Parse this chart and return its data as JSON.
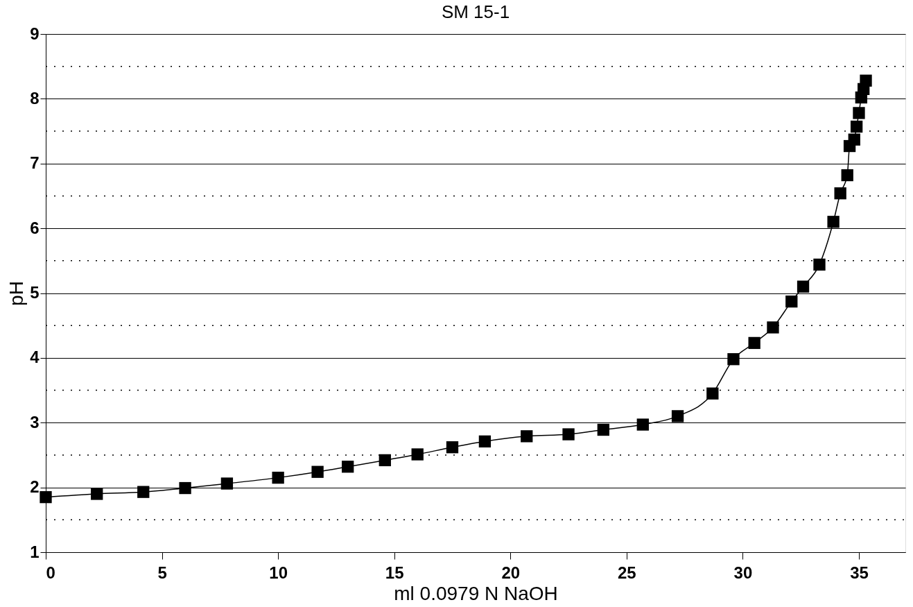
{
  "chart_data": {
    "type": "line",
    "title": "SM 15-1",
    "xlabel": "ml 0.0979 N NaOH",
    "ylabel": "pH",
    "x": [
      0,
      2.2,
      4.2,
      6.0,
      7.8,
      10.0,
      11.7,
      13.0,
      14.6,
      16.0,
      17.5,
      18.9,
      20.7,
      22.5,
      24.0,
      25.7,
      27.2,
      28.7,
      29.6,
      30.5,
      31.3,
      32.1,
      32.6,
      33.3,
      33.9,
      34.2,
      34.5,
      34.6,
      34.8,
      34.9,
      35.0,
      35.1,
      35.2,
      35.3
    ],
    "series": [
      {
        "color": "#000000",
        "values": [
          1.85,
          1.9,
          1.93,
          1.99,
          2.06,
          2.15,
          2.24,
          2.32,
          2.42,
          2.51,
          2.62,
          2.71,
          2.79,
          2.82,
          2.89,
          2.97,
          3.1,
          3.45,
          3.98,
          4.23,
          4.47,
          4.87,
          5.1,
          5.44,
          6.1,
          6.54,
          6.82,
          7.27,
          7.37,
          7.57,
          7.78,
          8.02,
          8.15,
          8.28
        ]
      }
    ],
    "xlim": [
      0,
      37
    ],
    "xticks": [
      0,
      5,
      10,
      15,
      20,
      25,
      30,
      35
    ],
    "ylim": [
      1,
      9
    ],
    "yticks": [
      1,
      {
        "value": 1.5,
        "label": null
      },
      2,
      {
        "value": 2.5,
        "label": null
      },
      3,
      {
        "value": 3.5,
        "label": null
      },
      4,
      {
        "value": 4.5,
        "label": null
      },
      5,
      {
        "value": 5.5,
        "label": null
      },
      6,
      {
        "value": 6.5,
        "label": null
      },
      7,
      {
        "value": 7.5,
        "label": null
      },
      8,
      {
        "value": 8.5,
        "label": null
      },
      9
    ],
    "grid": "y",
    "marker": "square",
    "line_style": "solid"
  }
}
